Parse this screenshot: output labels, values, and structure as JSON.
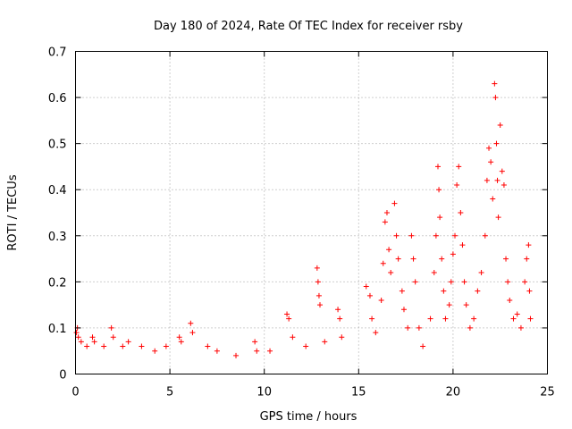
{
  "chart_data": {
    "type": "scatter",
    "title": "Day 180 of 2024, Rate Of TEC Index for receiver rsby",
    "xlabel": "GPS time / hours",
    "ylabel": "ROTI / TECUs",
    "xlim": [
      0,
      25
    ],
    "ylim": [
      0,
      0.7
    ],
    "xticks": [
      0,
      5,
      10,
      15,
      20,
      25
    ],
    "yticks": [
      0,
      0.1,
      0.2,
      0.3,
      0.4,
      0.5,
      0.6,
      0.7
    ],
    "xtick_labels": [
      "0",
      "5",
      "10",
      "15",
      "20",
      "25"
    ],
    "ytick_labels": [
      "0",
      "0.1",
      "0.2",
      "0.3",
      "0.4",
      "0.5",
      "0.6",
      "0.7"
    ],
    "grid": true,
    "marker": "+",
    "color": "#ff0000",
    "series": [
      {
        "name": "ROTI",
        "points": [
          [
            0.05,
            0.09
          ],
          [
            0.1,
            0.1
          ],
          [
            0.15,
            0.08
          ],
          [
            0.3,
            0.07
          ],
          [
            0.6,
            0.06
          ],
          [
            0.9,
            0.08
          ],
          [
            1.0,
            0.07
          ],
          [
            1.5,
            0.06
          ],
          [
            1.9,
            0.1
          ],
          [
            2.0,
            0.08
          ],
          [
            2.5,
            0.06
          ],
          [
            2.8,
            0.07
          ],
          [
            3.5,
            0.06
          ],
          [
            4.2,
            0.05
          ],
          [
            4.8,
            0.06
          ],
          [
            5.5,
            0.08
          ],
          [
            5.6,
            0.07
          ],
          [
            6.1,
            0.11
          ],
          [
            6.2,
            0.09
          ],
          [
            7.0,
            0.06
          ],
          [
            7.5,
            0.05
          ],
          [
            8.5,
            0.04
          ],
          [
            9.5,
            0.07
          ],
          [
            9.6,
            0.05
          ],
          [
            10.3,
            0.05
          ],
          [
            11.2,
            0.13
          ],
          [
            11.3,
            0.12
          ],
          [
            11.5,
            0.08
          ],
          [
            12.2,
            0.06
          ],
          [
            12.8,
            0.23
          ],
          [
            12.85,
            0.2
          ],
          [
            12.9,
            0.17
          ],
          [
            12.95,
            0.15
          ],
          [
            13.2,
            0.07
          ],
          [
            13.9,
            0.14
          ],
          [
            14.0,
            0.12
          ],
          [
            14.1,
            0.08
          ],
          [
            15.4,
            0.19
          ],
          [
            15.6,
            0.17
          ],
          [
            15.7,
            0.12
          ],
          [
            15.9,
            0.09
          ],
          [
            16.2,
            0.16
          ],
          [
            16.3,
            0.24
          ],
          [
            16.4,
            0.33
          ],
          [
            16.5,
            0.35
          ],
          [
            16.6,
            0.27
          ],
          [
            16.7,
            0.22
          ],
          [
            16.9,
            0.37
          ],
          [
            17.0,
            0.3
          ],
          [
            17.1,
            0.25
          ],
          [
            17.3,
            0.18
          ],
          [
            17.4,
            0.14
          ],
          [
            17.6,
            0.1
          ],
          [
            17.8,
            0.3
          ],
          [
            17.9,
            0.25
          ],
          [
            18.0,
            0.2
          ],
          [
            18.2,
            0.1
          ],
          [
            18.4,
            0.06
          ],
          [
            18.8,
            0.12
          ],
          [
            19.0,
            0.22
          ],
          [
            19.1,
            0.3
          ],
          [
            19.2,
            0.45
          ],
          [
            19.25,
            0.4
          ],
          [
            19.3,
            0.34
          ],
          [
            19.4,
            0.25
          ],
          [
            19.5,
            0.18
          ],
          [
            19.6,
            0.12
          ],
          [
            19.8,
            0.15
          ],
          [
            19.9,
            0.2
          ],
          [
            20.0,
            0.26
          ],
          [
            20.1,
            0.3
          ],
          [
            20.2,
            0.41
          ],
          [
            20.3,
            0.45
          ],
          [
            20.4,
            0.35
          ],
          [
            20.5,
            0.28
          ],
          [
            20.6,
            0.2
          ],
          [
            20.7,
            0.15
          ],
          [
            20.9,
            0.1
          ],
          [
            21.1,
            0.12
          ],
          [
            21.3,
            0.18
          ],
          [
            21.5,
            0.22
          ],
          [
            21.7,
            0.3
          ],
          [
            21.8,
            0.42
          ],
          [
            21.9,
            0.49
          ],
          [
            22.0,
            0.46
          ],
          [
            22.1,
            0.38
          ],
          [
            22.2,
            0.63
          ],
          [
            22.25,
            0.6
          ],
          [
            22.3,
            0.5
          ],
          [
            22.35,
            0.42
          ],
          [
            22.4,
            0.34
          ],
          [
            22.5,
            0.54
          ],
          [
            22.6,
            0.44
          ],
          [
            22.7,
            0.41
          ],
          [
            22.8,
            0.25
          ],
          [
            22.9,
            0.2
          ],
          [
            23.0,
            0.16
          ],
          [
            23.2,
            0.12
          ],
          [
            23.4,
            0.13
          ],
          [
            23.6,
            0.1
          ],
          [
            23.8,
            0.2
          ],
          [
            23.9,
            0.25
          ],
          [
            24.0,
            0.28
          ],
          [
            24.05,
            0.18
          ],
          [
            24.1,
            0.12
          ]
        ]
      }
    ]
  }
}
